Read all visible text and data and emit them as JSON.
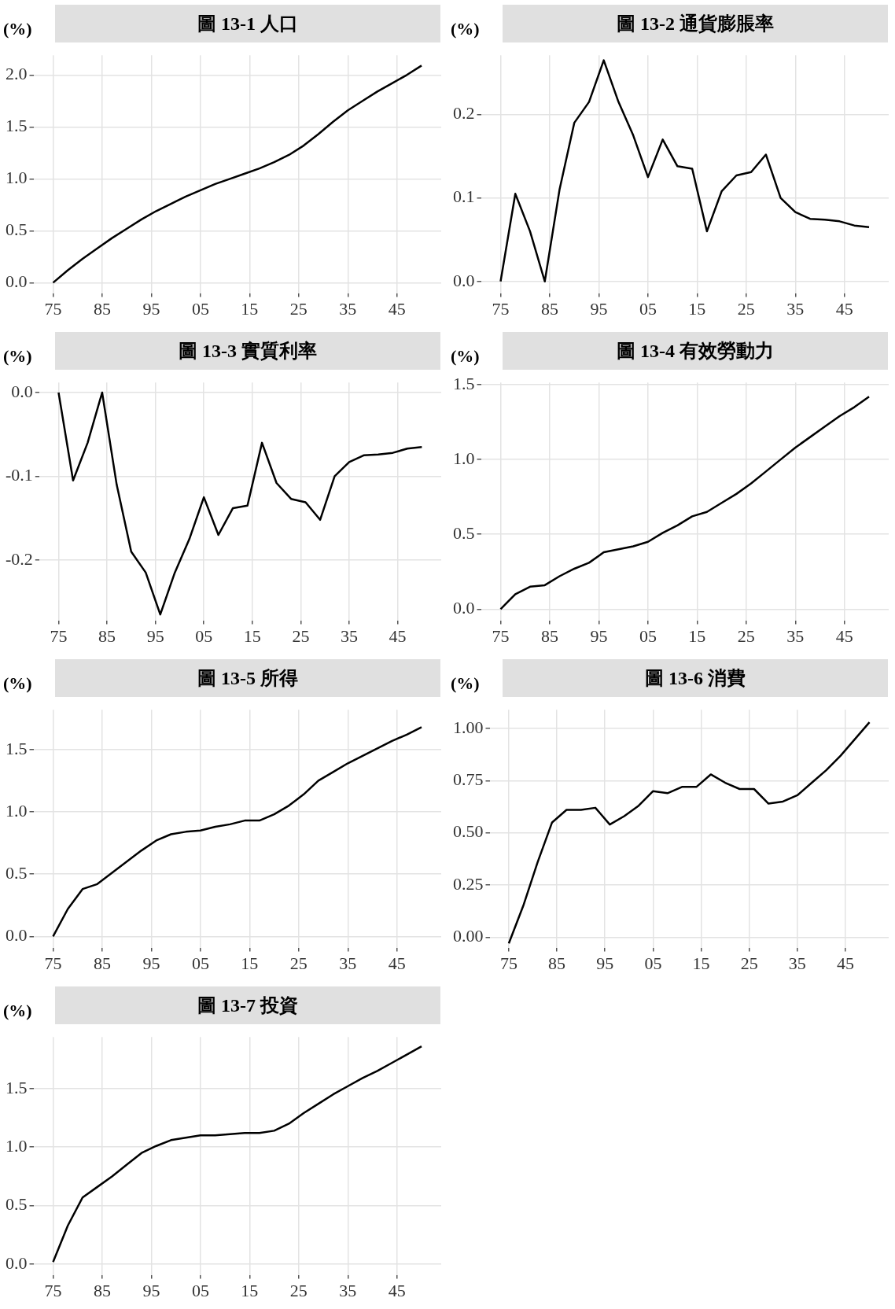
{
  "chart_data": [
    {
      "type": "line",
      "title": "圖 13-1  人口",
      "ylabel": "(%)",
      "color": "#000000",
      "grid": true,
      "x": [
        1975,
        1978,
        1981,
        1984,
        1987,
        1990,
        1993,
        1996,
        1999,
        2002,
        2005,
        2008,
        2011,
        2014,
        2017,
        2020,
        2023,
        2026,
        2029,
        2032,
        2035,
        2038,
        2041,
        2044,
        2047,
        2050
      ],
      "values": [
        0,
        0.12,
        0.23,
        0.33,
        0.43,
        0.52,
        0.61,
        0.69,
        0.76,
        0.83,
        0.89,
        0.95,
        1.0,
        1.05,
        1.1,
        1.16,
        1.23,
        1.32,
        1.43,
        1.55,
        1.66,
        1.75,
        1.84,
        1.92,
        2.0,
        2.09
      ],
      "xlim": [
        1971,
        2054
      ],
      "ylim": [
        -0.1,
        2.19
      ],
      "xticks": [
        {
          "value": 1975,
          "label": "75"
        },
        {
          "value": 1985,
          "label": "85"
        },
        {
          "value": 1995,
          "label": "95"
        },
        {
          "value": 2005,
          "label": "05"
        },
        {
          "value": 2015,
          "label": "15"
        },
        {
          "value": 2025,
          "label": "25"
        },
        {
          "value": 2035,
          "label": "35"
        },
        {
          "value": 2045,
          "label": "45"
        }
      ],
      "yticks": [
        {
          "value": 0,
          "label": "0.0"
        },
        0.5,
        {
          "value": 1,
          "label": "1.0"
        },
        1.5,
        {
          "value": 2,
          "label": "2.0"
        }
      ]
    },
    {
      "type": "line",
      "title": "圖 13-2  通貨膨脹率",
      "ylabel": "(%)",
      "color": "#000000",
      "grid": true,
      "x": [
        1975,
        1978,
        1981,
        1984,
        1987,
        1990,
        1993,
        1996,
        1999,
        2002,
        2005,
        2008,
        2011,
        2014,
        2017,
        2020,
        2023,
        2026,
        2029,
        2032,
        2035,
        2038,
        2041,
        2044,
        2047,
        2050
      ],
      "values": [
        0,
        0.105,
        0.06,
        0,
        0.11,
        0.19,
        0.215,
        0.265,
        0.215,
        0.175,
        0.125,
        0.17,
        0.138,
        0.135,
        0.06,
        0.108,
        0.127,
        0.131,
        0.152,
        0.1,
        0.083,
        0.075,
        0.074,
        0.072,
        0.067,
        0.065
      ],
      "xlim": [
        1971,
        2054
      ],
      "ylim": [
        -0.014,
        0.271
      ],
      "xticks": [
        {
          "value": 1975,
          "label": "75"
        },
        {
          "value": 1985,
          "label": "85"
        },
        {
          "value": 1995,
          "label": "95"
        },
        {
          "value": 2005,
          "label": "05"
        },
        {
          "value": 2015,
          "label": "15"
        },
        {
          "value": 2025,
          "label": "25"
        },
        {
          "value": 2035,
          "label": "35"
        },
        {
          "value": 2045,
          "label": "45"
        }
      ],
      "yticks": [
        {
          "value": 0,
          "label": "0.0"
        },
        0.1,
        0.2
      ]
    },
    {
      "type": "line",
      "title": "圖 13-3  實質利率",
      "ylabel": "(%)",
      "color": "#000000",
      "grid": true,
      "x": [
        1975,
        1978,
        1981,
        1984,
        1987,
        1990,
        1993,
        1996,
        1999,
        2002,
        2005,
        2008,
        2011,
        2014,
        2017,
        2020,
        2023,
        2026,
        2029,
        2032,
        2035,
        2038,
        2041,
        2044,
        2047,
        2050
      ],
      "values": [
        0,
        -0.105,
        -0.06,
        0,
        -0.11,
        -0.19,
        -0.215,
        -0.265,
        -0.215,
        -0.175,
        -0.125,
        -0.17,
        -0.138,
        -0.135,
        -0.06,
        -0.108,
        -0.127,
        -0.131,
        -0.152,
        -0.1,
        -0.083,
        -0.075,
        -0.074,
        -0.072,
        -0.067,
        -0.065
      ],
      "xlim": [
        1971,
        2054
      ],
      "ylim": [
        -0.272,
        0.012
      ],
      "xticks": [
        {
          "value": 1975,
          "label": "75"
        },
        {
          "value": 1985,
          "label": "85"
        },
        {
          "value": 1995,
          "label": "95"
        },
        {
          "value": 2005,
          "label": "05"
        },
        {
          "value": 2015,
          "label": "15"
        },
        {
          "value": 2025,
          "label": "25"
        },
        {
          "value": 2035,
          "label": "35"
        },
        {
          "value": 2045,
          "label": "45"
        }
      ],
      "yticks": [
        {
          "value": -0.2,
          "label": "-0.2"
        },
        {
          "value": -0.1,
          "label": "-0.1"
        },
        {
          "value": 0,
          "label": "0.0"
        }
      ]
    },
    {
      "type": "line",
      "title": "圖 13-4  有效勞動力",
      "ylabel": "(%)",
      "color": "#000000",
      "grid": true,
      "x": [
        1975,
        1978,
        1981,
        1984,
        1987,
        1990,
        1993,
        1996,
        1999,
        2002,
        2005,
        2008,
        2011,
        2014,
        2017,
        2020,
        2023,
        2026,
        2029,
        2032,
        2035,
        2038,
        2041,
        2044,
        2047,
        2050
      ],
      "values": [
        0,
        0.1,
        0.15,
        0.16,
        0.22,
        0.27,
        0.31,
        0.38,
        0.4,
        0.42,
        0.45,
        0.51,
        0.56,
        0.62,
        0.65,
        0.71,
        0.77,
        0.84,
        0.92,
        1.0,
        1.08,
        1.15,
        1.22,
        1.29,
        1.35,
        1.42
      ],
      "xlim": [
        1971,
        2054
      ],
      "ylim": [
        -0.075,
        1.515
      ],
      "xticks": [
        {
          "value": 1975,
          "label": "75"
        },
        {
          "value": 1985,
          "label": "85"
        },
        {
          "value": 1995,
          "label": "95"
        },
        {
          "value": 2005,
          "label": "05"
        },
        {
          "value": 2015,
          "label": "15"
        },
        {
          "value": 2025,
          "label": "25"
        },
        {
          "value": 2035,
          "label": "35"
        },
        {
          "value": 2045,
          "label": "45"
        }
      ],
      "yticks": [
        {
          "value": 0,
          "label": "0.0"
        },
        0.5,
        {
          "value": 1,
          "label": "1.0"
        },
        1.5
      ]
    },
    {
      "type": "line",
      "title": "圖 13-5  所得",
      "ylabel": "(%)",
      "color": "#000000",
      "grid": true,
      "x": [
        1975,
        1978,
        1981,
        1984,
        1987,
        1990,
        1993,
        1996,
        1999,
        2002,
        2005,
        2008,
        2011,
        2014,
        2017,
        2020,
        2023,
        2026,
        2029,
        2032,
        2035,
        2038,
        2041,
        2044,
        2047,
        2050
      ],
      "values": [
        0,
        0.22,
        0.38,
        0.42,
        0.51,
        0.6,
        0.69,
        0.77,
        0.82,
        0.84,
        0.85,
        0.88,
        0.9,
        0.93,
        0.93,
        0.98,
        1.05,
        1.14,
        1.25,
        1.32,
        1.39,
        1.45,
        1.51,
        1.57,
        1.62,
        1.68
      ],
      "xlim": [
        1971,
        2054
      ],
      "ylim": [
        -0.09,
        1.82
      ],
      "xticks": [
        {
          "value": 1975,
          "label": "75"
        },
        {
          "value": 1985,
          "label": "85"
        },
        {
          "value": 1995,
          "label": "95"
        },
        {
          "value": 2005,
          "label": "05"
        },
        {
          "value": 2015,
          "label": "15"
        },
        {
          "value": 2025,
          "label": "25"
        },
        {
          "value": 2035,
          "label": "35"
        },
        {
          "value": 2045,
          "label": "45"
        }
      ],
      "yticks": [
        {
          "value": 0,
          "label": "0.0"
        },
        0.5,
        {
          "value": 1,
          "label": "1.0"
        },
        1.5
      ]
    },
    {
      "type": "line",
      "title": "圖 13-6  消費",
      "ylabel": "(%)",
      "color": "#000000",
      "grid": true,
      "x": [
        1975,
        1978,
        1981,
        1984,
        1987,
        1990,
        1993,
        1996,
        1999,
        2002,
        2005,
        2008,
        2011,
        2014,
        2017,
        2020,
        2023,
        2026,
        2029,
        2032,
        2035,
        2038,
        2041,
        2044,
        2047,
        2050
      ],
      "values": [
        -0.03,
        0.15,
        0.36,
        0.55,
        0.61,
        0.61,
        0.62,
        0.54,
        0.58,
        0.63,
        0.7,
        0.69,
        0.72,
        0.72,
        0.78,
        0.74,
        0.71,
        0.71,
        0.64,
        0.65,
        0.68,
        0.74,
        0.8,
        0.87,
        0.95,
        1.03
      ],
      "xlim": [
        1971,
        2054
      ],
      "ylim": [
        -0.05,
        1.09
      ],
      "xticks": [
        {
          "value": 1975,
          "label": "75"
        },
        {
          "value": 1985,
          "label": "85"
        },
        {
          "value": 1995,
          "label": "95"
        },
        {
          "value": 2005,
          "label": "05"
        },
        {
          "value": 2015,
          "label": "15"
        },
        {
          "value": 2025,
          "label": "25"
        },
        {
          "value": 2035,
          "label": "35"
        },
        {
          "value": 2045,
          "label": "45"
        }
      ],
      "yticks": [
        {
          "value": 0,
          "label": "0.00"
        },
        0.25,
        {
          "value": 0.5,
          "label": "0.50"
        },
        0.75,
        {
          "value": 1,
          "label": "1.00"
        }
      ]
    },
    {
      "type": "line",
      "title": "圖 13-7  投資",
      "ylabel": "(%)",
      "color": "#000000",
      "grid": true,
      "x": [
        1975,
        1978,
        1981,
        1984,
        1987,
        1990,
        1993,
        1996,
        1999,
        2002,
        2005,
        2008,
        2011,
        2014,
        2017,
        2020,
        2023,
        2026,
        2029,
        2032,
        2035,
        2038,
        2041,
        2044,
        2047,
        2050
      ],
      "values": [
        0.02,
        0.33,
        0.57,
        0.66,
        0.75,
        0.85,
        0.95,
        1.01,
        1.06,
        1.08,
        1.1,
        1.1,
        1.11,
        1.12,
        1.12,
        1.14,
        1.2,
        1.29,
        1.37,
        1.45,
        1.52,
        1.59,
        1.65,
        1.72,
        1.79,
        1.86
      ],
      "xlim": [
        1971,
        2054
      ],
      "ylim": [
        -0.09,
        1.94
      ],
      "xticks": [
        {
          "value": 1975,
          "label": "75"
        },
        {
          "value": 1985,
          "label": "85"
        },
        {
          "value": 1995,
          "label": "95"
        },
        {
          "value": 2005,
          "label": "05"
        },
        {
          "value": 2015,
          "label": "15"
        },
        {
          "value": 2025,
          "label": "25"
        },
        {
          "value": 2035,
          "label": "35"
        },
        {
          "value": 2045,
          "label": "45"
        }
      ],
      "yticks": [
        {
          "value": 0,
          "label": "0.0"
        },
        0.5,
        {
          "value": 1,
          "label": "1.0"
        },
        1.5
      ]
    }
  ]
}
